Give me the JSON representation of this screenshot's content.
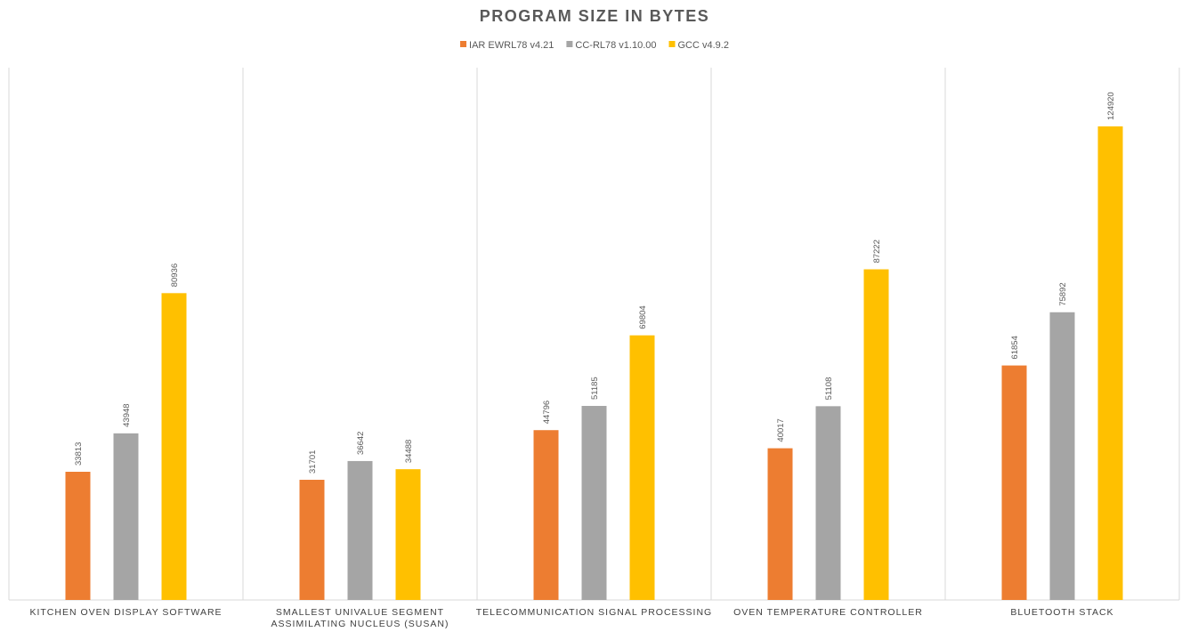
{
  "chart_data": {
    "type": "bar",
    "title": "PROGRAM SIZE IN BYTES",
    "legend_position": "top-center",
    "grid": false,
    "ylim": [
      0,
      134000
    ],
    "categories": [
      [
        "KITCHEN OVEN DISPLAY SOFTWARE"
      ],
      [
        "SMALLEST UNIVALUE SEGMENT",
        "ASSIMILATING NUCLEUS (SUSAN)"
      ],
      [
        "TELECOMMUNICATION SIGNAL PROCESSING"
      ],
      [
        "OVEN TEMPERATURE CONTROLLER"
      ],
      [
        "BLUETOOTH STACK"
      ]
    ],
    "series": [
      {
        "name": "IAR EWRL78 v4.21",
        "color": "#ed7d31",
        "values": [
          33813,
          31701,
          44796,
          40017,
          61854
        ]
      },
      {
        "name": "CC-RL78 v1.10.00",
        "color": "#a5a5a5",
        "values": [
          43948,
          36642,
          51185,
          51108,
          75892
        ]
      },
      {
        "name": "GCC v4.9.2",
        "color": "#ffc000",
        "values": [
          80936,
          34488,
          69804,
          87222,
          124920
        ]
      }
    ]
  }
}
